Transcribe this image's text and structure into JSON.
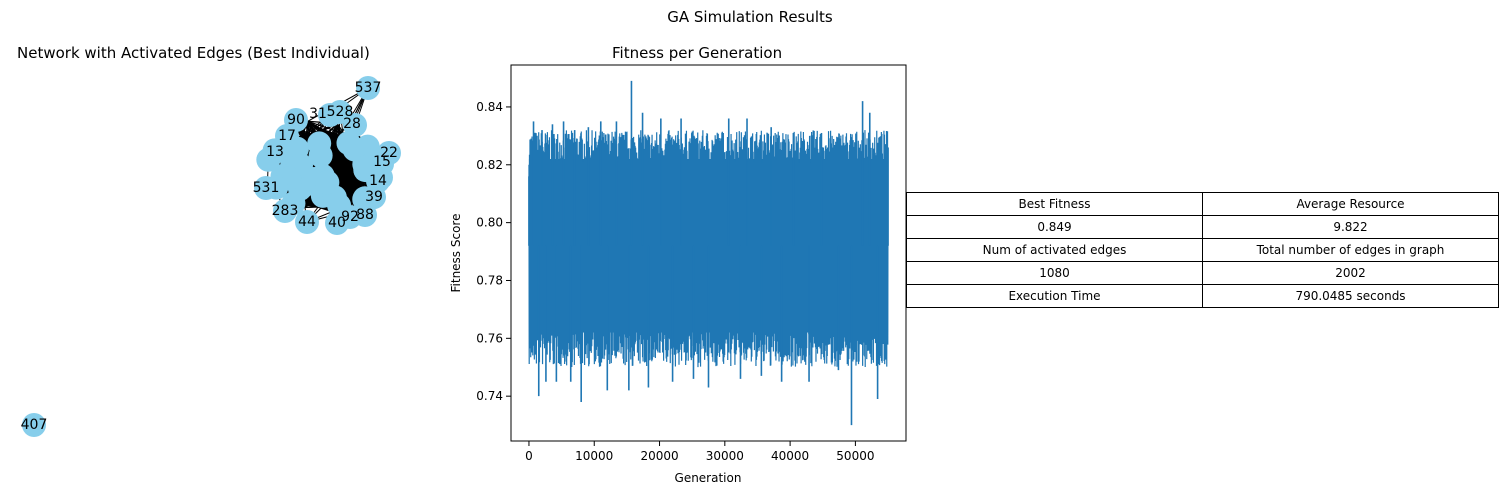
{
  "suptitle": "GA Simulation Results",
  "network": {
    "title": "Network with Activated Edges (Best Individual)",
    "node_color": "#87ceeb",
    "edge_color": "#000000",
    "labeled_nodes": [
      "537",
      "528",
      "90",
      "17",
      "13",
      "22",
      "15",
      "14",
      "39",
      "88",
      "92",
      "40",
      "44",
      "283",
      "531",
      "31",
      "28",
      "407"
    ]
  },
  "fitness": {
    "title": "Fitness per Generation",
    "xlabel": "Generation",
    "ylabel": "Fitness Score",
    "line_color": "#1f77b4"
  },
  "table": [
    [
      "Best Fitness",
      "Average Resource"
    ],
    [
      "0.849",
      "9.822"
    ],
    [
      "Num of activated edges",
      "Total number of edges in graph"
    ],
    [
      "1080",
      "2002"
    ],
    [
      "Execution Time",
      "790.0485 seconds"
    ]
  ],
  "chart_data": [
    {
      "type": "line",
      "title": "Fitness per Generation",
      "xlabel": "Generation",
      "ylabel": "Fitness Score",
      "xlim": [
        -2750,
        57750
      ],
      "ylim": [
        0.7245,
        0.8545
      ],
      "xticks": [
        0,
        10000,
        20000,
        30000,
        40000,
        50000
      ],
      "yticks": [
        0.74,
        0.76,
        0.78,
        0.8,
        0.82,
        0.84
      ],
      "grid": false,
      "x_range": [
        0,
        55000
      ],
      "band": {
        "low": 0.762,
        "high": 0.822
      },
      "series": [
        {
          "points": [
            [
              0,
              0.816
            ],
            [
              700,
              0.835
            ],
            [
              1500,
              0.74
            ],
            [
              2000,
              0.832
            ],
            [
              2600,
              0.745
            ],
            [
              3600,
              0.834
            ],
            [
              4200,
              0.745
            ],
            [
              5300,
              0.835
            ],
            [
              6400,
              0.745
            ],
            [
              7000,
              0.832
            ],
            [
              8000,
              0.738
            ],
            [
              9100,
              0.833
            ],
            [
              11000,
              0.835
            ],
            [
              12000,
              0.742
            ],
            [
              13400,
              0.835
            ],
            [
              15300,
              0.742
            ],
            [
              15700,
              0.849
            ],
            [
              17400,
              0.838
            ],
            [
              18300,
              0.743
            ],
            [
              20200,
              0.836
            ],
            [
              22000,
              0.745
            ],
            [
              23300,
              0.836
            ],
            [
              25200,
              0.746
            ],
            [
              27500,
              0.743
            ],
            [
              30600,
              0.836
            ],
            [
              32400,
              0.746
            ],
            [
              33400,
              0.836
            ],
            [
              35600,
              0.747
            ],
            [
              37100,
              0.833
            ],
            [
              38700,
              0.745
            ],
            [
              40500,
              0.831
            ],
            [
              42900,
              0.745
            ],
            [
              44800,
              0.831
            ],
            [
              47400,
              0.749
            ],
            [
              49400,
              0.73
            ],
            [
              51100,
              0.842
            ],
            [
              52200,
              0.838
            ],
            [
              53400,
              0.739
            ],
            [
              55000,
              0.826
            ]
          ]
        }
      ]
    },
    {
      "type": "table",
      "rows": [
        [
          "Best Fitness",
          "Average Resource"
        ],
        [
          "0.849",
          "9.822"
        ],
        [
          "Num of activated edges",
          "Total number of edges in graph"
        ],
        [
          "1080",
          "2002"
        ],
        [
          "Execution Time",
          "790.0485 seconds"
        ]
      ]
    }
  ]
}
